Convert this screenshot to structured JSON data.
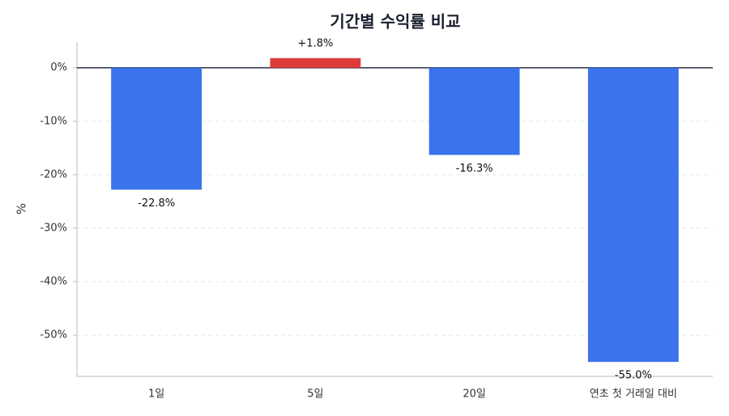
{
  "chart_data": {
    "type": "bar",
    "title": "기간별 수익률 비교",
    "y_label": "%",
    "categories": [
      "1일",
      "5일",
      "20일",
      "연초 첫 거래일 대비"
    ],
    "values": [
      -22.8,
      1.8,
      -16.3,
      -55.0
    ],
    "value_labels": [
      "-22.8%",
      "+1.8%",
      "-16.3%",
      "-55.0%"
    ],
    "colors": [
      "#3b73ec",
      "#e03b3b",
      "#3b73ec",
      "#3b73ec"
    ],
    "ylim": [
      -57.7,
      4.8
    ],
    "yticks": [
      {
        "value": 0,
        "label": "0%"
      },
      {
        "value": -10,
        "label": "-10%"
      },
      {
        "value": -20,
        "label": "-20%"
      },
      {
        "value": -30,
        "label": "-30%"
      },
      {
        "value": -40,
        "label": "-40%"
      },
      {
        "value": -50,
        "label": "-50%"
      }
    ],
    "grid": true
  }
}
